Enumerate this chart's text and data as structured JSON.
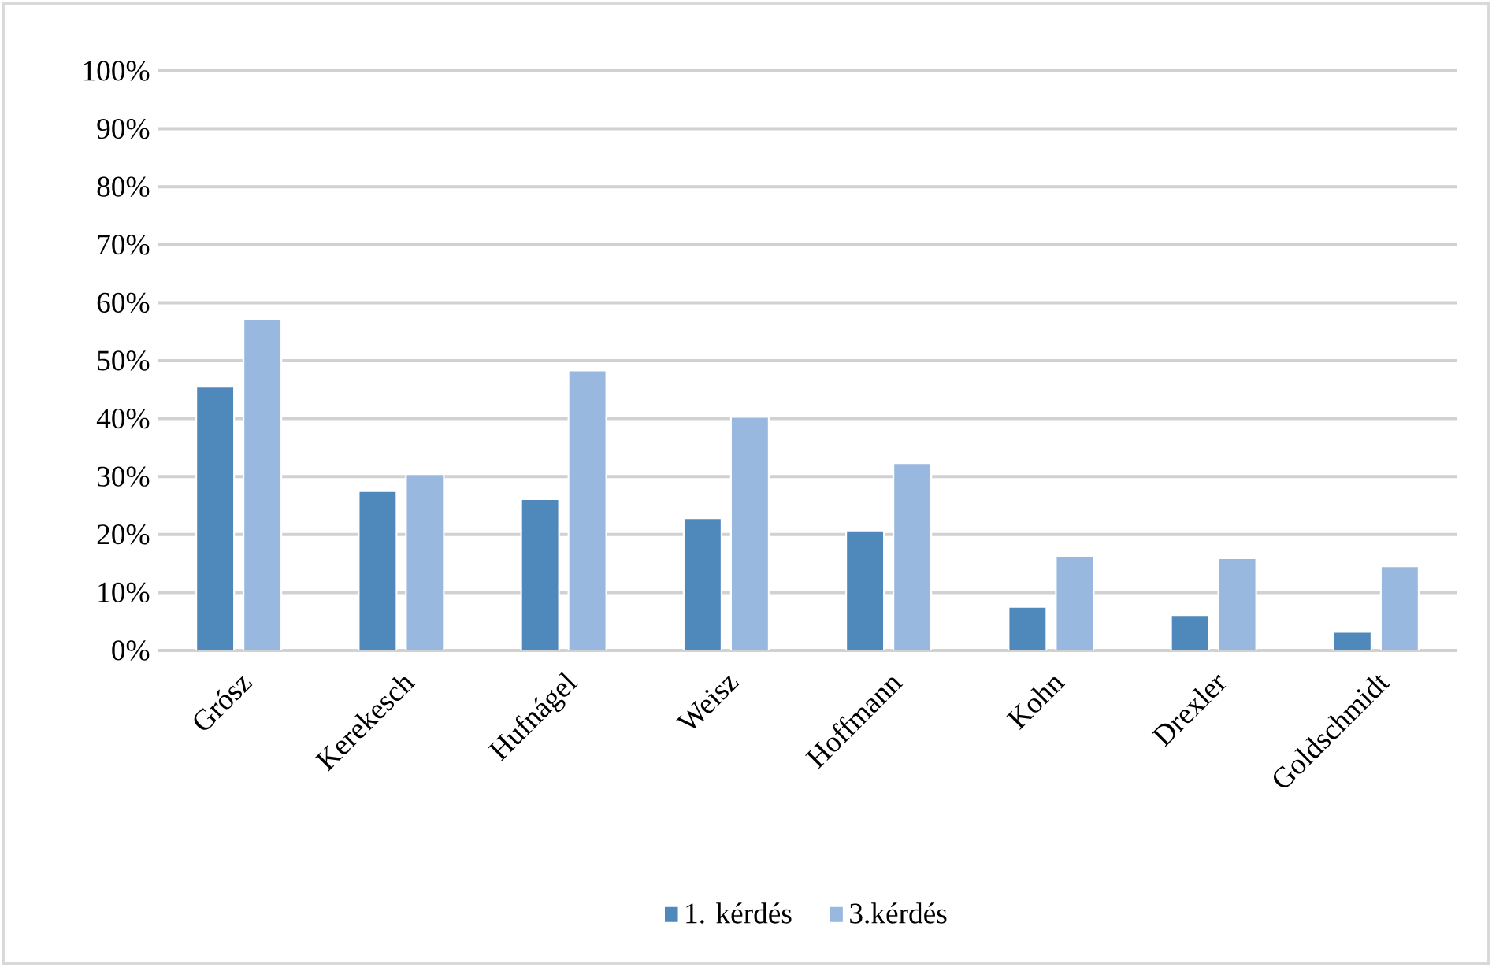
{
  "chart_data": {
    "type": "bar",
    "categories": [
      "Grósz",
      "Kerekesch",
      "Hufnágel",
      "Weisz",
      "Hoffmann",
      "Kohn",
      "Drexler",
      "Goldschmidt"
    ],
    "series": [
      {
        "name": "1. kérdés",
        "color": "#4f88bb",
        "values": [
          45.5,
          27.5,
          26.1,
          22.8,
          20.7,
          7.5,
          6.1,
          3.2
        ]
      },
      {
        "name": "3.kérdés",
        "color": "#98b8df",
        "values": [
          57.1,
          30.4,
          48.3,
          40.3,
          32.3,
          16.3,
          15.9,
          14.5
        ]
      }
    ],
    "ylim": [
      0,
      100
    ],
    "yticks": [
      {
        "value": 0,
        "label": "0%"
      },
      {
        "value": 10,
        "label": "10%"
      },
      {
        "value": 20,
        "label": "20%"
      },
      {
        "value": 30,
        "label": "30%"
      },
      {
        "value": 40,
        "label": "40%"
      },
      {
        "value": 50,
        "label": "50%"
      },
      {
        "value": 60,
        "label": "60%"
      },
      {
        "value": 70,
        "label": "70%"
      },
      {
        "value": 80,
        "label": "80%"
      },
      {
        "value": 90,
        "label": "90%"
      },
      {
        "value": 100,
        "label": "100%"
      }
    ],
    "grid": "y",
    "legend": "bottom"
  }
}
